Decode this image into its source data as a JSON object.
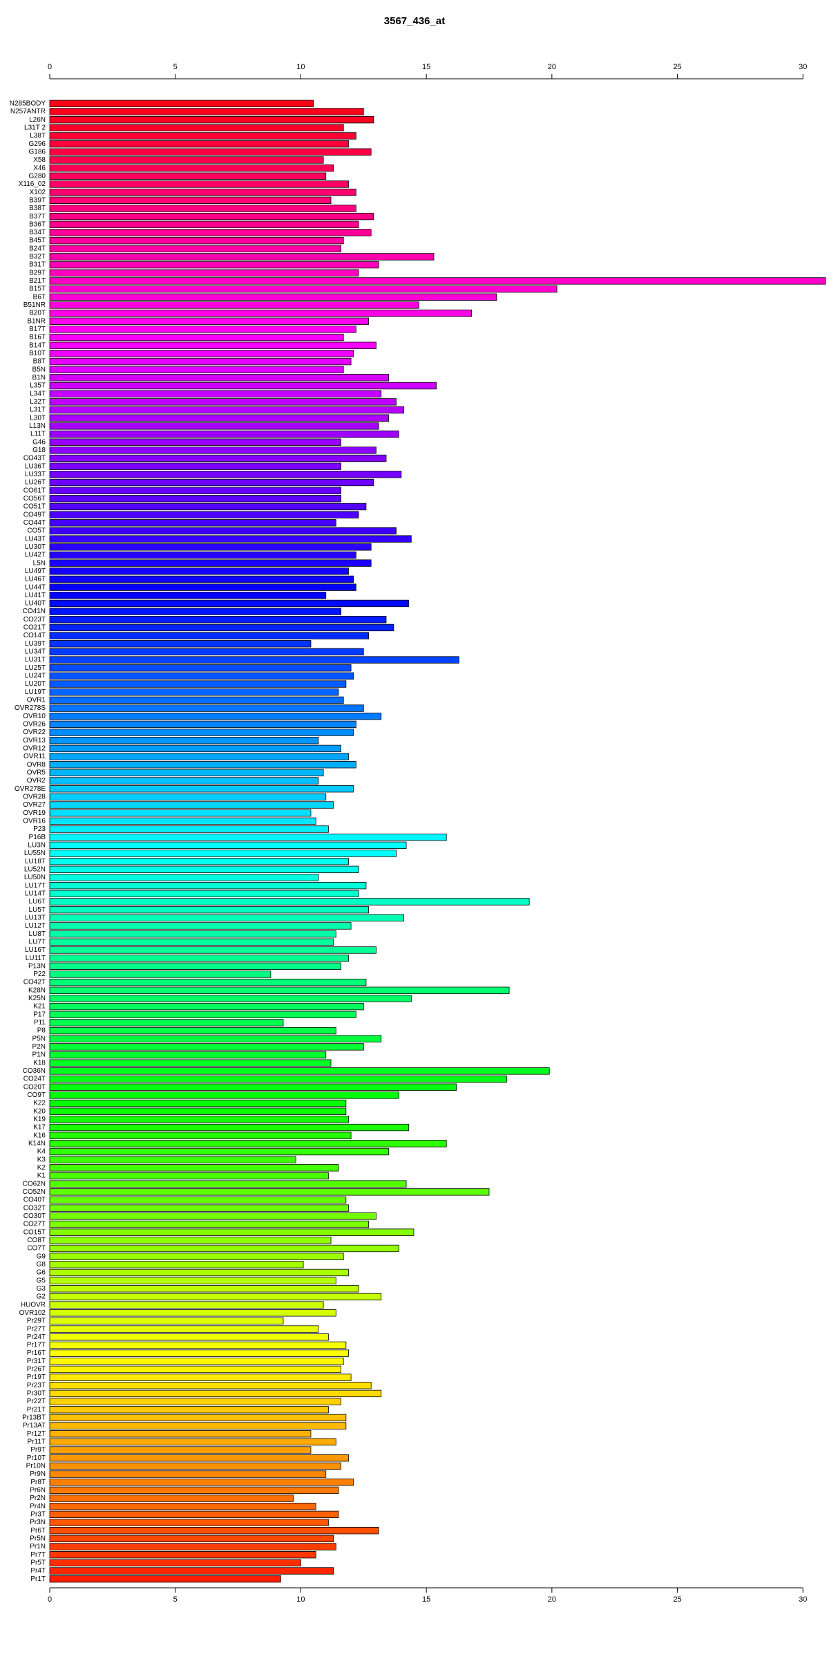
{
  "chart_data": {
    "type": "bar",
    "orientation": "horizontal",
    "title": "3567_436_at",
    "xlim": [
      0,
      30.9
    ],
    "xticks": [
      0,
      5,
      10,
      15,
      20,
      25,
      30
    ],
    "categories": [
      "N285BODY",
      "N257ANTR",
      "L26N",
      "L31T 2",
      "L38T",
      "G296",
      "G186",
      "X58",
      "X46",
      "G280",
      "X116_02",
      "X102",
      "B39T",
      "B38T",
      "B37T",
      "B36T",
      "B34T",
      "B45T",
      "B24T",
      "B32T",
      "B31T",
      "B29T",
      "B21T",
      "B15T",
      "B6T",
      "B51NR",
      "B20T",
      "B1NR",
      "B17T",
      "B16T",
      "B14T",
      "B10T",
      "B8T",
      "B5N",
      "B1N",
      "L35T",
      "L34T",
      "L32T",
      "L31T",
      "L30T",
      "L13N",
      "L11T",
      "G46",
      "G18",
      "CO43T",
      "LU36T",
      "LU33T",
      "LU26T",
      "CO61T",
      "CO56T",
      "CO51T",
      "CO49T",
      "CO44T",
      "CO5T",
      "LU43T",
      "LU30T",
      "LU42T",
      "L5N",
      "LU49T",
      "LU46T",
      "LU44T",
      "LU41T",
      "LU40T",
      "CO41N",
      "CO23T",
      "CO21T",
      "CO14T",
      "LU39T",
      "LU34T",
      "LU31T",
      "LU25T",
      "LU24T",
      "LU20T",
      "LU19T",
      "OVR1",
      "OVR278S",
      "OVR10",
      "OVR26",
      "OVR22",
      "OVR13",
      "OVR12",
      "OVR11",
      "OVR8",
      "OVR5",
      "OVR2",
      "OVR278E",
      "OVR28",
      "OVR27",
      "OVR19",
      "OVR16",
      "P23",
      "P16B",
      "LU3N",
      "LU55N",
      "LU18T",
      "LU52N",
      "LU50N",
      "LU17T",
      "LU14T",
      "LU6T",
      "LU5T",
      "LU13T",
      "LU12T",
      "LU8T",
      "LU7T",
      "LU16T",
      "LU11T",
      "P13N",
      "P22",
      "CO42T",
      "K28N",
      "K25N",
      "K21",
      "P17",
      "P11",
      "P8",
      "P5N",
      "P2N",
      "P1N",
      "K18",
      "CO36N",
      "CO24T",
      "CO20T",
      "CO9T",
      "K22",
      "K20",
      "K19",
      "K17",
      "K16",
      "K14N",
      "K4",
      "K3",
      "K2",
      "K1",
      "CO62N",
      "CO52N",
      "CO40T",
      "CO32T",
      "CO30T",
      "CO27T",
      "CO15T",
      "CO8T",
      "CO7T",
      "G9",
      "G8",
      "G6",
      "G5",
      "G3",
      "G2",
      "HUOVR",
      "OVR102",
      "Pr29T",
      "Pr27T",
      "Pr24T",
      "Pr17T",
      "Pr16T",
      "Pr31T",
      "Pr26T",
      "Pr19T",
      "Pr23T",
      "Pr30T",
      "Pr22T",
      "Pr21T",
      "Pr13BT",
      "Pr13AT",
      "Pr12T",
      "Pr11T",
      "Pr9T",
      "Pr10T",
      "Pr10N",
      "Pr9N",
      "Pr8T",
      "Pr6N",
      "Pr2N",
      "Pr4N",
      "Pr3T",
      "Pr3N",
      "Pr6T",
      "Pr5N",
      "Pr1N",
      "Pr7T",
      "Pr5T",
      "Pr4T",
      "Pr1T"
    ],
    "values": [
      10.5,
      12.5,
      12.9,
      11.7,
      12.2,
      11.9,
      12.8,
      10.9,
      11.3,
      11.0,
      11.9,
      12.2,
      11.2,
      12.2,
      12.9,
      12.3,
      12.8,
      11.7,
      11.6,
      15.3,
      13.1,
      12.3,
      30.9,
      20.2,
      17.8,
      14.7,
      16.8,
      12.7,
      12.2,
      11.7,
      13.0,
      12.1,
      12.0,
      11.7,
      13.5,
      15.4,
      13.2,
      13.8,
      14.1,
      13.5,
      13.1,
      13.9,
      11.6,
      13.0,
      13.4,
      11.6,
      14.0,
      12.9,
      11.6,
      11.6,
      12.6,
      12.3,
      11.4,
      13.8,
      14.4,
      12.8,
      12.2,
      12.8,
      11.9,
      12.1,
      12.2,
      11.0,
      14.3,
      11.6,
      13.4,
      13.7,
      12.7,
      10.4,
      12.5,
      16.3,
      12.0,
      12.1,
      11.8,
      11.5,
      11.7,
      12.5,
      13.2,
      12.2,
      12.1,
      10.7,
      11.6,
      11.9,
      12.2,
      10.9,
      10.7,
      12.1,
      11.0,
      11.3,
      10.4,
      10.6,
      11.1,
      15.8,
      14.2,
      13.8,
      11.9,
      12.3,
      10.7,
      12.6,
      12.3,
      19.1,
      12.7,
      14.1,
      12.0,
      11.4,
      11.3,
      13.0,
      11.9,
      11.6,
      8.8,
      12.6,
      18.3,
      14.4,
      12.5,
      12.2,
      9.3,
      11.4,
      13.2,
      12.5,
      11.0,
      11.2,
      19.9,
      18.2,
      16.2,
      13.9,
      11.8,
      11.8,
      11.9,
      14.3,
      12.0,
      15.8,
      13.5,
      9.8,
      11.5,
      11.1,
      14.2,
      17.5,
      11.8,
      11.9,
      13.0,
      12.7,
      14.5,
      11.2,
      13.9,
      11.7,
      10.1,
      11.9,
      11.4,
      12.3,
      13.2,
      10.9,
      11.4,
      9.3,
      10.7,
      11.1,
      11.8,
      11.9,
      11.7,
      11.6,
      12.0,
      12.8,
      13.2,
      11.6,
      11.1,
      11.8,
      11.8,
      10.4,
      11.4,
      10.4,
      11.9,
      11.6,
      11.0,
      12.1,
      11.5,
      9.7,
      10.6,
      11.5,
      11.1,
      13.1,
      11.3,
      11.4,
      10.6,
      10.0,
      11.3,
      9.2
    ],
    "colors": [
      "#FF0015",
      "#FF001D",
      "#FF0025",
      "#FF002D",
      "#FF0035",
      "#FF003E",
      "#FF0046",
      "#FF004E",
      "#FF0056",
      "#FF005E",
      "#FF0066",
      "#FF006E",
      "#FF0076",
      "#FF007E",
      "#FF0086",
      "#FF008E",
      "#FF0096",
      "#FF009F",
      "#FF00A7",
      "#FF00AF",
      "#FF00B7",
      "#FF00BF",
      "#FF00C7",
      "#FF00CF",
      "#FF00D7",
      "#FF00DF",
      "#FF00E7",
      "#FF00EF",
      "#FF00F7",
      "#FE00FF",
      "#F600FF",
      "#EE00FF",
      "#E600FF",
      "#DE00FF",
      "#D600FF",
      "#CE00FF",
      "#C600FF",
      "#BE00FF",
      "#B600FF",
      "#AE00FF",
      "#A600FF",
      "#9E00FF",
      "#9600FF",
      "#8D00FF",
      "#8500FF",
      "#7D00FF",
      "#7500FF",
      "#6D00FF",
      "#6500FF",
      "#5D00FF",
      "#5500FF",
      "#4D00FF",
      "#4500FF",
      "#3D00FF",
      "#3500FF",
      "#2D00FF",
      "#2500FF",
      "#1C00FF",
      "#1400FF",
      "#0C00FF",
      "#0400FF",
      "#0004FF",
      "#000CFF",
      "#0014FF",
      "#001CFF",
      "#0024FF",
      "#002CFF",
      "#0034FF",
      "#003CFF",
      "#0044FF",
      "#004CFF",
      "#0055FF",
      "#005DFF",
      "#0065FF",
      "#006DFF",
      "#0075FF",
      "#007DFF",
      "#0085FF",
      "#008DFF",
      "#0095FF",
      "#009DFF",
      "#00A5FF",
      "#00ADFF",
      "#00B6FF",
      "#00BEFF",
      "#00C6FF",
      "#00CEFF",
      "#00D6FF",
      "#00DEFF",
      "#00E6FF",
      "#00EEFF",
      "#00F6FF",
      "#00FEFF",
      "#00FFF8",
      "#00FFF0",
      "#00FFE8",
      "#00FFE0",
      "#00FFD7",
      "#00FFCF",
      "#00FFC7",
      "#00FFBF",
      "#00FFB7",
      "#00FFAF",
      "#00FFA7",
      "#00FF9F",
      "#00FF97",
      "#00FF8F",
      "#00FF87",
      "#00FF7F",
      "#00FF77",
      "#00FF6E",
      "#00FF66",
      "#00FF5E",
      "#00FF56",
      "#00FF4E",
      "#00FF46",
      "#00FF3E",
      "#00FF36",
      "#00FF2E",
      "#00FF26",
      "#00FF1E",
      "#00FF16",
      "#00FF0E",
      "#00FF06",
      "#03FF00",
      "#0BFF00",
      "#13FF00",
      "#1BFF00",
      "#23FF00",
      "#2BFF00",
      "#33FF00",
      "#3BFF00",
      "#43FF00",
      "#4BFF00",
      "#53FF00",
      "#5BFF00",
      "#63FF00",
      "#6CFF00",
      "#74FF00",
      "#7CFF00",
      "#84FF00",
      "#8CFF00",
      "#94FF00",
      "#9CFF00",
      "#A4FF00",
      "#ACFF00",
      "#B4FF00",
      "#BCFF00",
      "#C4FF00",
      "#CCFF00",
      "#D5FF00",
      "#DDFF00",
      "#E5FF00",
      "#EDFF00",
      "#F5FF00",
      "#FDFF00",
      "#FFF900",
      "#FFF100",
      "#FFE900",
      "#FFE100",
      "#FFD900",
      "#FFD100",
      "#FFC900",
      "#FFC000",
      "#FFB800",
      "#FFB000",
      "#FFA800",
      "#FFA000",
      "#FF9800",
      "#FF9000",
      "#FF8800",
      "#FF8000",
      "#FF7800",
      "#FF7000",
      "#FF6800",
      "#FF6000",
      "#FF5800",
      "#FF4F00",
      "#FF4700",
      "#FF3F00",
      "#FF3700",
      "#FF2F00",
      "#FF2700",
      "#FF1F00"
    ]
  }
}
